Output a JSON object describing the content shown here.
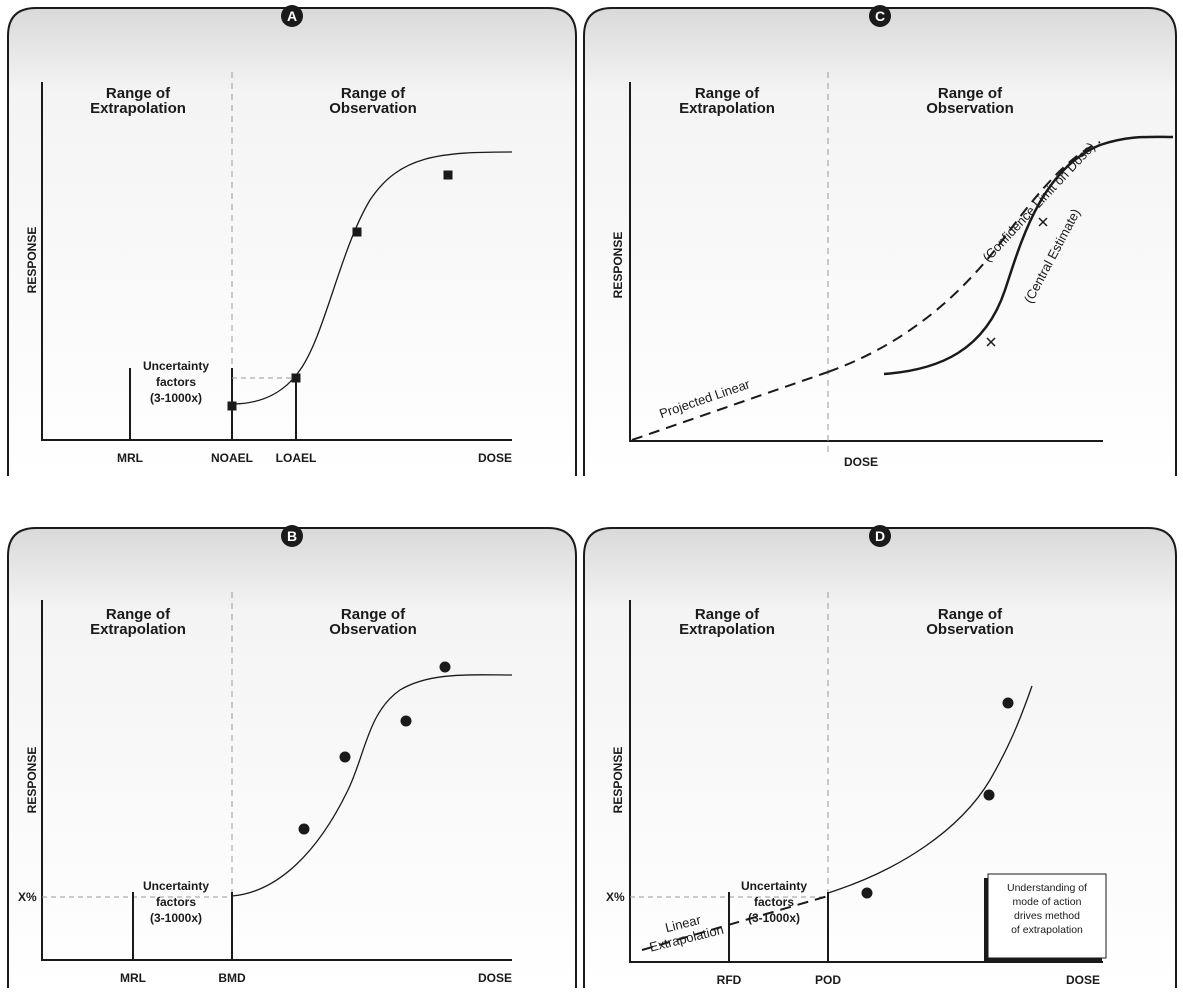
{
  "chart_data": [
    {
      "id": "A",
      "type": "line",
      "badge": "A",
      "regions": [
        "Range of\nExtrapolation",
        "Range of\nObservation"
      ],
      "xlabel": "DOSE",
      "ylabel": "RESPONSE",
      "x_ticks": [
        "MRL",
        "NOAEL",
        "LOAEL"
      ],
      "uncertainty_label": "Uncertainty\nfactors\n(3-1000x)",
      "series": [
        {
          "kind": "curve",
          "style": "solid"
        },
        {
          "kind": "points",
          "marker": "square",
          "count": 4
        }
      ]
    },
    {
      "id": "B",
      "type": "line",
      "badge": "B",
      "regions": [
        "Range of\nExtrapolation",
        "Range of\nObservation"
      ],
      "xlabel": "DOSE",
      "ylabel": "RESPONSE",
      "x_ticks": [
        "MRL",
        "BMD"
      ],
      "y_ticks": [
        "X%"
      ],
      "uncertainty_label": "Uncertainty\nfactors\n(3-1000x)",
      "series": [
        {
          "kind": "curve",
          "style": "solid"
        },
        {
          "kind": "points",
          "marker": "circle",
          "count": 4
        }
      ]
    },
    {
      "id": "C",
      "type": "line",
      "badge": "C",
      "regions": [
        "Range of\nExtrapolation",
        "Range of\nObservation"
      ],
      "xlabel": "DOSE",
      "ylabel": "RESPONSE",
      "series": [
        {
          "kind": "curve",
          "style": "solid",
          "label": "(Central Estimate)"
        },
        {
          "kind": "curve",
          "style": "dashed",
          "label": "(Confidence Limit on Dose)"
        },
        {
          "kind": "curve",
          "style": "dashed",
          "label": "Projected Linear"
        },
        {
          "kind": "points",
          "marker": "x",
          "count": 2
        }
      ]
    },
    {
      "id": "D",
      "type": "line",
      "badge": "D",
      "regions": [
        "Range of\nExtrapolation",
        "Range of\nObservation"
      ],
      "xlabel": "DOSE",
      "ylabel": "RESPONSE",
      "x_ticks": [
        "RFD",
        "POD"
      ],
      "y_ticks": [
        "X%"
      ],
      "uncertainty_label": "Uncertainty\nfactors\n(3-1000x)",
      "extrapolation_label": "Linear\nExtrapolation",
      "note": "Understanding of\nmode of action\ndrives method\nof extrapolation",
      "series": [
        {
          "kind": "curve",
          "style": "solid"
        },
        {
          "kind": "curve",
          "style": "dashed",
          "label": "Linear\nExtrapolation"
        },
        {
          "kind": "points",
          "marker": "circle",
          "count": 3
        }
      ]
    }
  ]
}
